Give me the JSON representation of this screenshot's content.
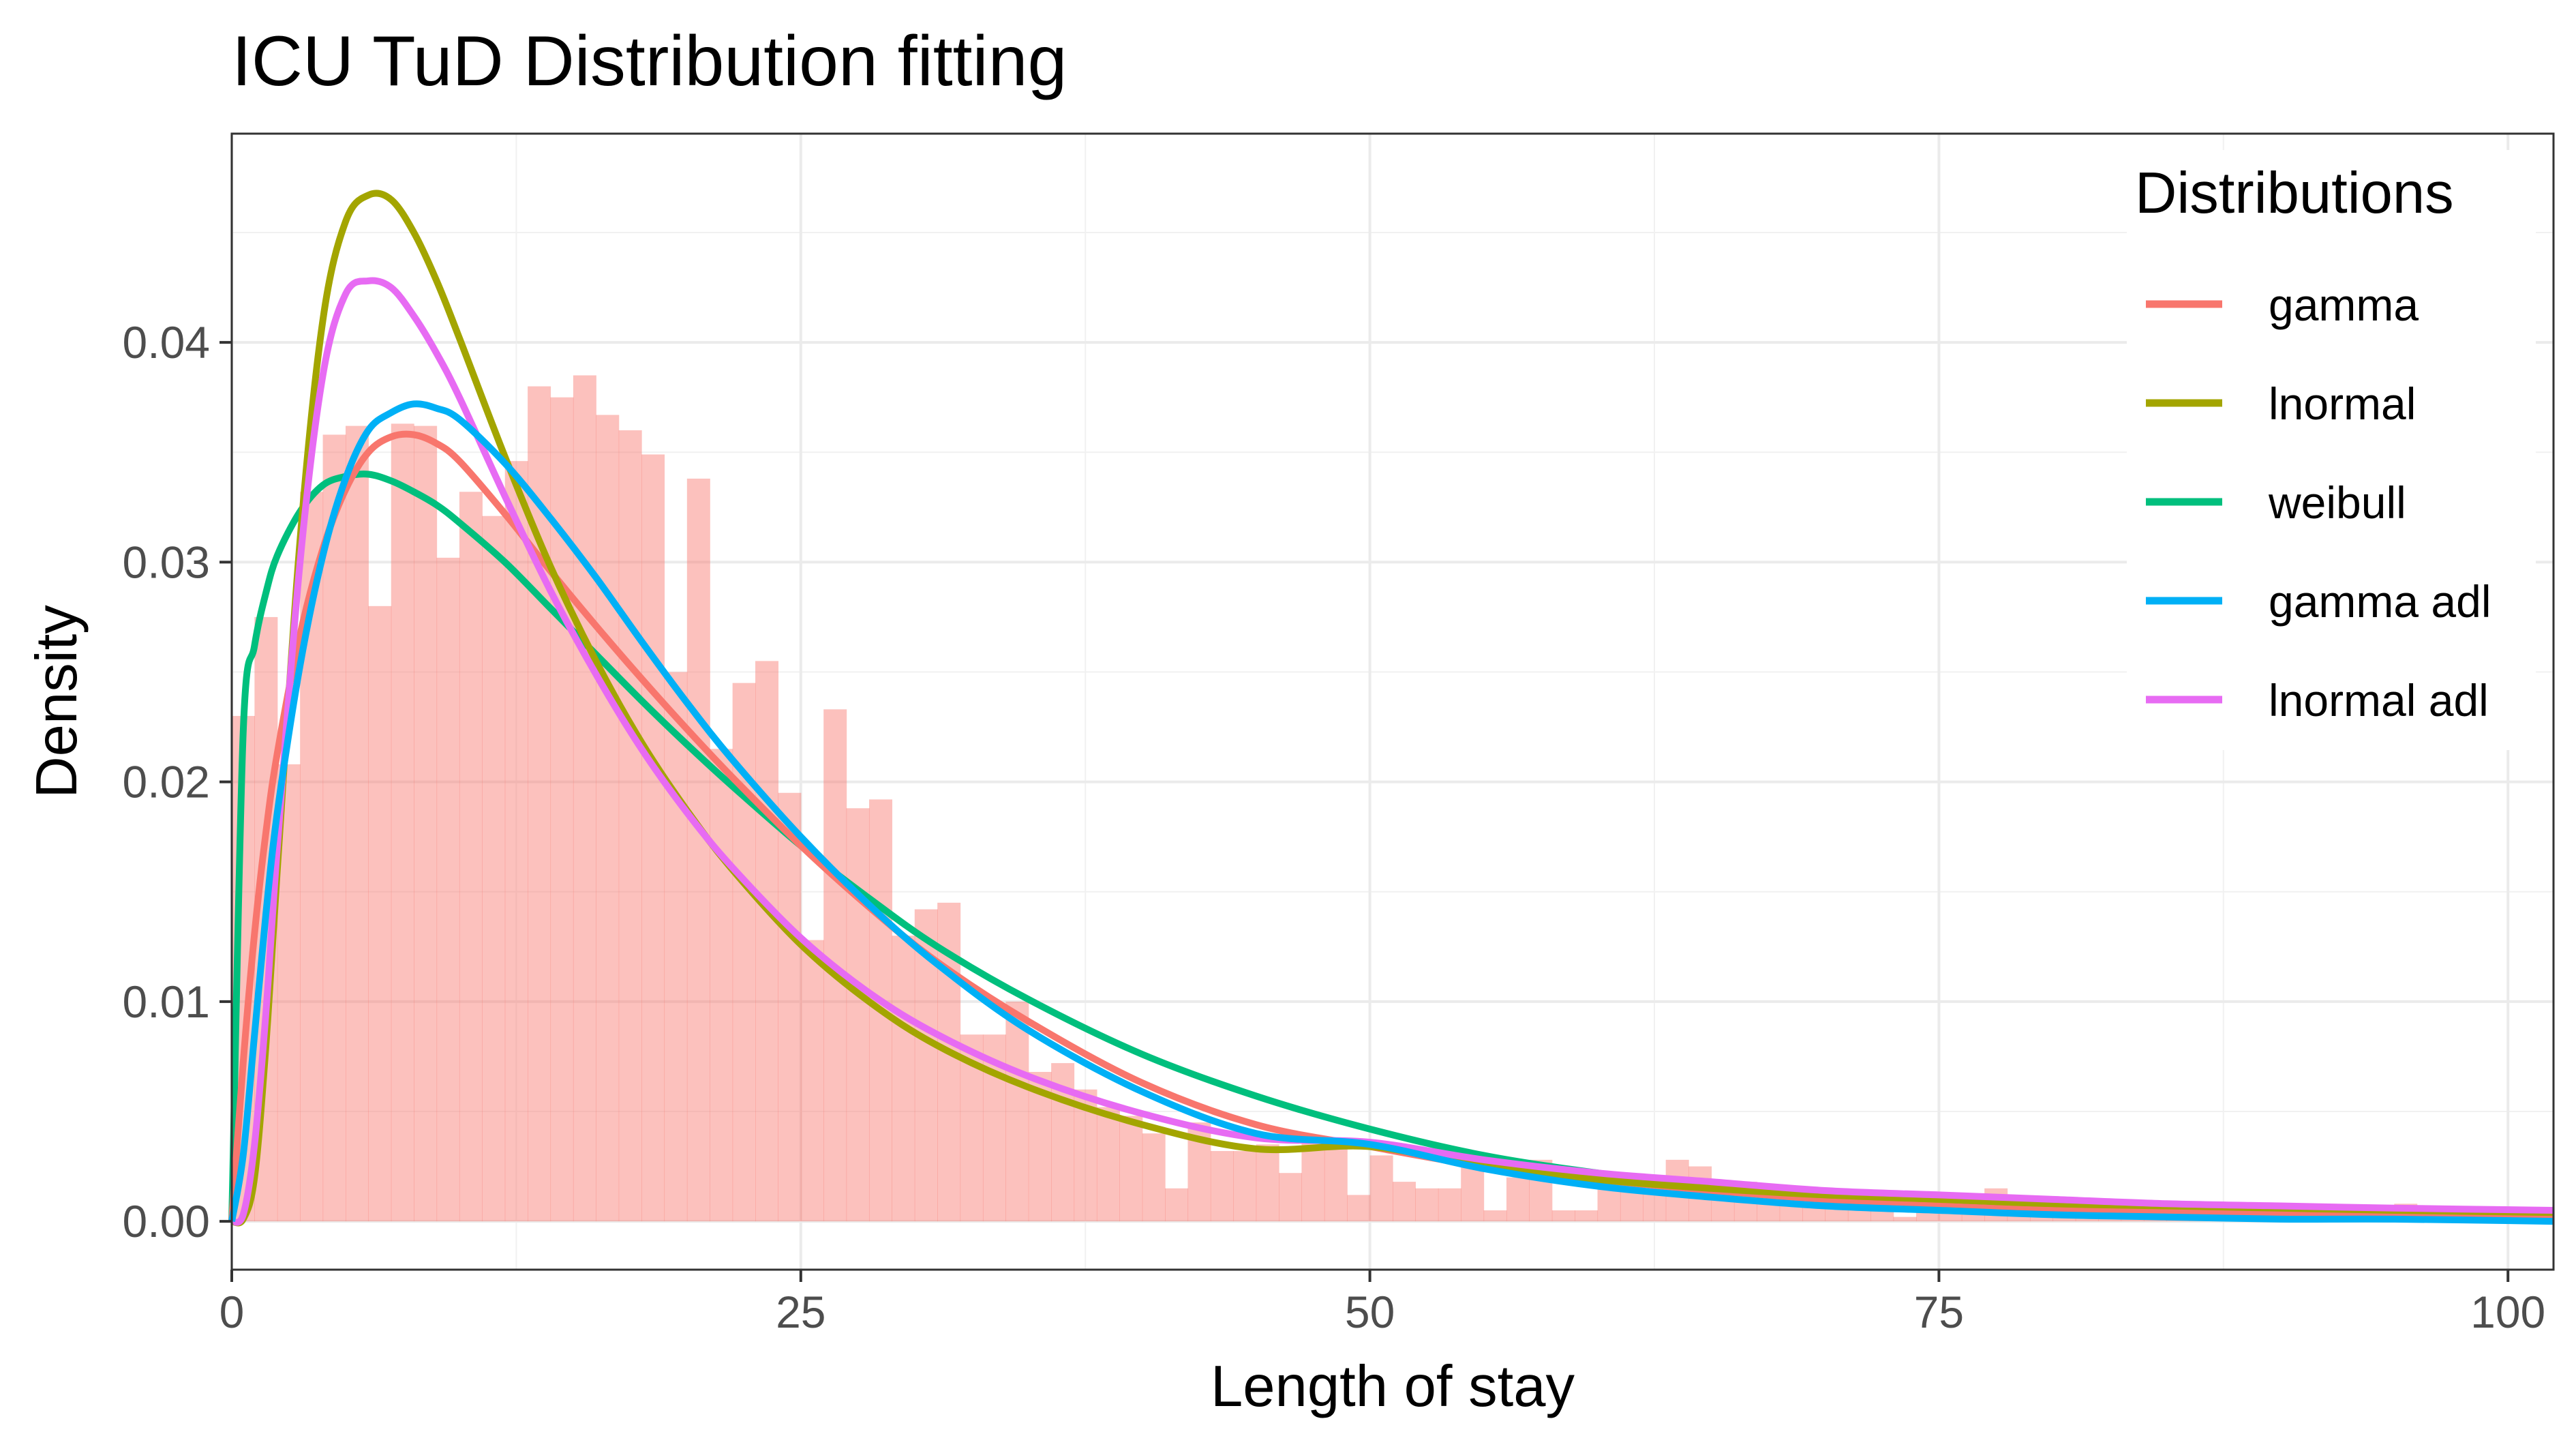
{
  "chart_data": {
    "type": "histogram-density",
    "title": "ICU TuD Distribution fitting",
    "xlabel": "Length of stay",
    "ylabel": "Density",
    "xlim": [
      0,
      102
    ],
    "ylim": [
      -0.0022,
      0.0495
    ],
    "x_ticks": [
      0,
      25,
      50,
      75,
      100
    ],
    "x_tick_labels": [
      "0",
      "25",
      "50",
      "75",
      "100"
    ],
    "y_ticks": [
      0,
      0.01,
      0.02,
      0.03,
      0.04
    ],
    "y_tick_labels": [
      "0.00",
      "0.01",
      "0.02",
      "0.03",
      "0.04"
    ],
    "grid": true,
    "legend_title": "Distributions",
    "legend_position": "top-right",
    "histogram": {
      "color": "#F8766D",
      "opacity": 0.45,
      "bin_width": 1,
      "bin_start": 0,
      "densities": [
        0.023,
        0.0275,
        0.0208,
        0.0332,
        0.0358,
        0.0362,
        0.028,
        0.0363,
        0.0362,
        0.0302,
        0.0332,
        0.0321,
        0.0346,
        0.038,
        0.0375,
        0.0385,
        0.0367,
        0.036,
        0.0349,
        0.025,
        0.0338,
        0.0215,
        0.0245,
        0.0255,
        0.0195,
        0.0128,
        0.0233,
        0.0188,
        0.0192,
        0.013,
        0.0142,
        0.0145,
        0.0085,
        0.0085,
        0.01,
        0.0068,
        0.0072,
        0.006,
        0.0052,
        0.0048,
        0.004,
        0.0015,
        0.0045,
        0.0032,
        0.0032,
        0.0035,
        0.0022,
        0.0038,
        0.0035,
        0.0012,
        0.003,
        0.0018,
        0.0015,
        0.0015,
        0.0025,
        0.0005,
        0.002,
        0.0028,
        0.0005,
        0.0005,
        0.0018,
        0.0018,
        0.0015,
        0.0028,
        0.0025,
        0.0018,
        0.0018,
        0.0015,
        0.0012,
        0.0015,
        0.001,
        0.0012,
        0.001,
        0.0002,
        0.0012,
        0.0005,
        0.001,
        0.0015,
        0.0008,
        0.0008,
        0.0005,
        0.0008,
        0.0005,
        0.0005,
        0.0005,
        0.0008,
        0.0005,
        0.0005,
        0.0003,
        0.0005,
        0.0005,
        0.0003,
        0.0005,
        0.0005,
        0.0003,
        0.0008,
        0.0005,
        0.0003,
        0.0005,
        0.0005,
        0.0003,
        0.0003
      ]
    },
    "x_sample": [
      0,
      0.5,
      1,
      1.5,
      2,
      3,
      4,
      5,
      6,
      7,
      8,
      9,
      10,
      12,
      14,
      16,
      18,
      20,
      22,
      25,
      28,
      31,
      35,
      40,
      45,
      50,
      55,
      60,
      65,
      70,
      75,
      80,
      85,
      90,
      95,
      102
    ],
    "series": [
      {
        "name": "gamma",
        "color": "#F8766D",
        "y": [
          0,
          0.0072,
          0.0131,
          0.0177,
          0.0213,
          0.0267,
          0.0306,
          0.0333,
          0.035,
          0.0357,
          0.0358,
          0.0354,
          0.0346,
          0.0322,
          0.0296,
          0.0271,
          0.0247,
          0.0224,
          0.0202,
          0.0171,
          0.0143,
          0.0118,
          0.0091,
          0.0063,
          0.0044,
          0.0034,
          0.0025,
          0.0019,
          0.0014,
          0.001,
          0.0007,
          0.0005,
          0.0004,
          0.0003,
          0.0002,
          0.0001
        ]
      },
      {
        "name": "lnormal",
        "color": "#A3A500",
        "y": [
          0,
          0.0001,
          0.002,
          0.008,
          0.016,
          0.031,
          0.041,
          0.0455,
          0.0467,
          0.0465,
          0.045,
          0.0428,
          0.0402,
          0.0348,
          0.0298,
          0.0255,
          0.0218,
          0.0187,
          0.016,
          0.0126,
          0.01,
          0.008,
          0.0061,
          0.0044,
          0.0033,
          0.0034,
          0.0025,
          0.0019,
          0.0015,
          0.0012,
          0.001,
          0.0008,
          0.0007,
          0.0006,
          0.0005,
          0.0004
        ]
      },
      {
        "name": "weibull",
        "color": "#00BF7D",
        "y": [
          0,
          0.0222,
          0.0262,
          0.0286,
          0.0303,
          0.0323,
          0.0335,
          0.0339,
          0.034,
          0.0337,
          0.0332,
          0.0326,
          0.0318,
          0.03,
          0.0279,
          0.0258,
          0.0237,
          0.0217,
          0.0198,
          0.0171,
          0.0147,
          0.0125,
          0.0101,
          0.0076,
          0.0057,
          0.0042,
          0.003,
          0.0022,
          0.0016,
          0.0011,
          0.0008,
          0.0006,
          0.0004,
          0.0003,
          0.0002,
          0.0001
        ]
      },
      {
        "name": "gamma adl",
        "color": "#00B0F6",
        "y": [
          0,
          0.003,
          0.0085,
          0.014,
          0.0186,
          0.0253,
          0.0303,
          0.0338,
          0.036,
          0.0368,
          0.0372,
          0.037,
          0.0365,
          0.0345,
          0.032,
          0.0293,
          0.0264,
          0.0236,
          0.021,
          0.0175,
          0.0144,
          0.0117,
          0.0087,
          0.0059,
          0.004,
          0.0035,
          0.0024,
          0.0016,
          0.0011,
          0.0007,
          0.0005,
          0.0003,
          0.0002,
          0.0001,
          0.0001,
          0.0
        ]
      },
      {
        "name": "lnormal adl",
        "color": "#E76BF3",
        "y": [
          0,
          0.0003,
          0.0035,
          0.0095,
          0.017,
          0.03,
          0.0385,
          0.0422,
          0.0428,
          0.0425,
          0.0412,
          0.0395,
          0.0375,
          0.033,
          0.0287,
          0.0249,
          0.0215,
          0.0186,
          0.0161,
          0.0129,
          0.0104,
          0.0085,
          0.0066,
          0.0049,
          0.0038,
          0.0036,
          0.0028,
          0.0022,
          0.0018,
          0.0014,
          0.0012,
          0.001,
          0.0008,
          0.0007,
          0.0006,
          0.0005
        ]
      }
    ]
  }
}
